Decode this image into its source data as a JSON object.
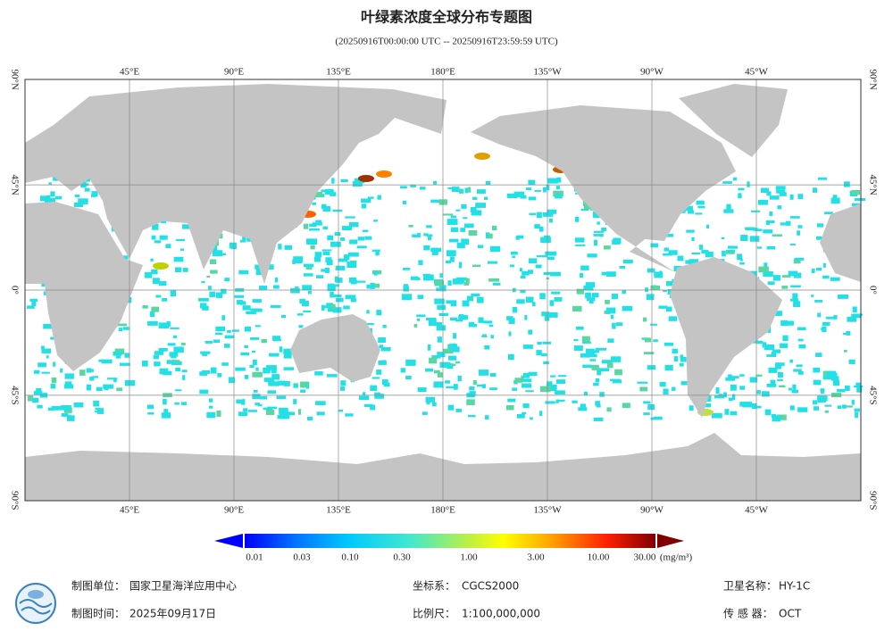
{
  "header": {
    "title": "叶绿素浓度全球分布专题图",
    "subtitle": "(20250916T00:00:00 UTC -- 20250916T23:59:59 UTC)"
  },
  "map": {
    "lon_labels": [
      "45°E",
      "90°E",
      "135°E",
      "180°E",
      "135°W",
      "90°W",
      "45°W"
    ],
    "lat_labels": [
      "90°N",
      "45°N",
      "0°",
      "45°S",
      "90°S"
    ]
  },
  "colorbar": {
    "labels": [
      "0.01",
      "0.03",
      "0.10",
      "0.30",
      "1.00",
      "3.00",
      "10.00",
      "30.00"
    ],
    "unit": "(mg/m³)"
  },
  "footer": {
    "unit": {
      "label": "制图单位：",
      "value": "国家卫星海洋应用中心"
    },
    "date": {
      "label": "制图时间：",
      "value": "2025年09月17日"
    },
    "crs": {
      "label": "坐标系：",
      "value": "CGCS2000"
    },
    "scale": {
      "label": "比例尺：",
      "value": "1:100,000,000"
    },
    "satellite": {
      "label": "卫星名称：",
      "value": "HY-1C"
    },
    "sensor": {
      "label": "传 感 器：",
      "value": "OCT"
    }
  }
}
